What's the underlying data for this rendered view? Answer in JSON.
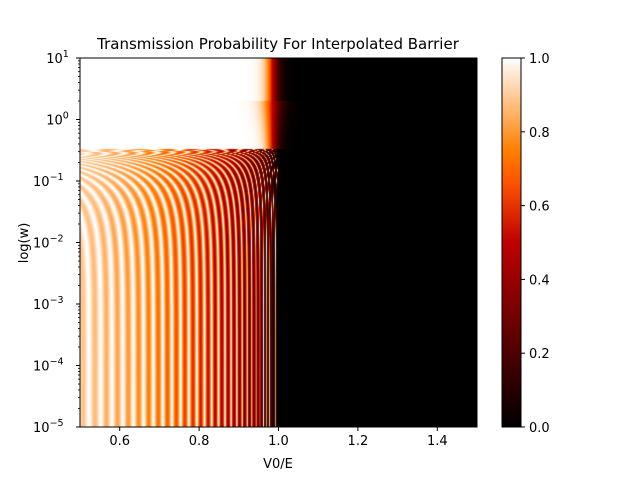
{
  "chart_data": {
    "type": "heatmap",
    "title": "Transmission Probability For Interpolated Barrier",
    "xlabel": "V0/E",
    "ylabel": "log(w)",
    "xlim": [
      0.5,
      1.5
    ],
    "ylim": [
      1e-05,
      10
    ],
    "yscale": "log",
    "x_ticks": [
      0.6,
      0.8,
      1.0,
      1.2,
      1.4
    ],
    "x_tick_labels": [
      "0.6",
      "0.8",
      "1.0",
      "1.2",
      "1.4"
    ],
    "y_ticks": [
      -5,
      -4,
      -3,
      -2,
      -1,
      0,
      1
    ],
    "y_tick_bases": [
      "10",
      "10",
      "10",
      "10",
      "10",
      "10",
      "10"
    ],
    "y_tick_exponents": [
      "−5",
      "−4",
      "−3",
      "−2",
      "−1",
      "0",
      "1"
    ],
    "colormap": "gist_heat",
    "colorbar": {
      "range": [
        0.0,
        1.0
      ],
      "ticks": [
        "0.0",
        "0.2",
        "0.4",
        "0.6",
        "0.8",
        "1.0"
      ],
      "tick_values": [
        0.0,
        0.2,
        0.4,
        0.6,
        0.8,
        1.0
      ]
    },
    "grid": false
  }
}
